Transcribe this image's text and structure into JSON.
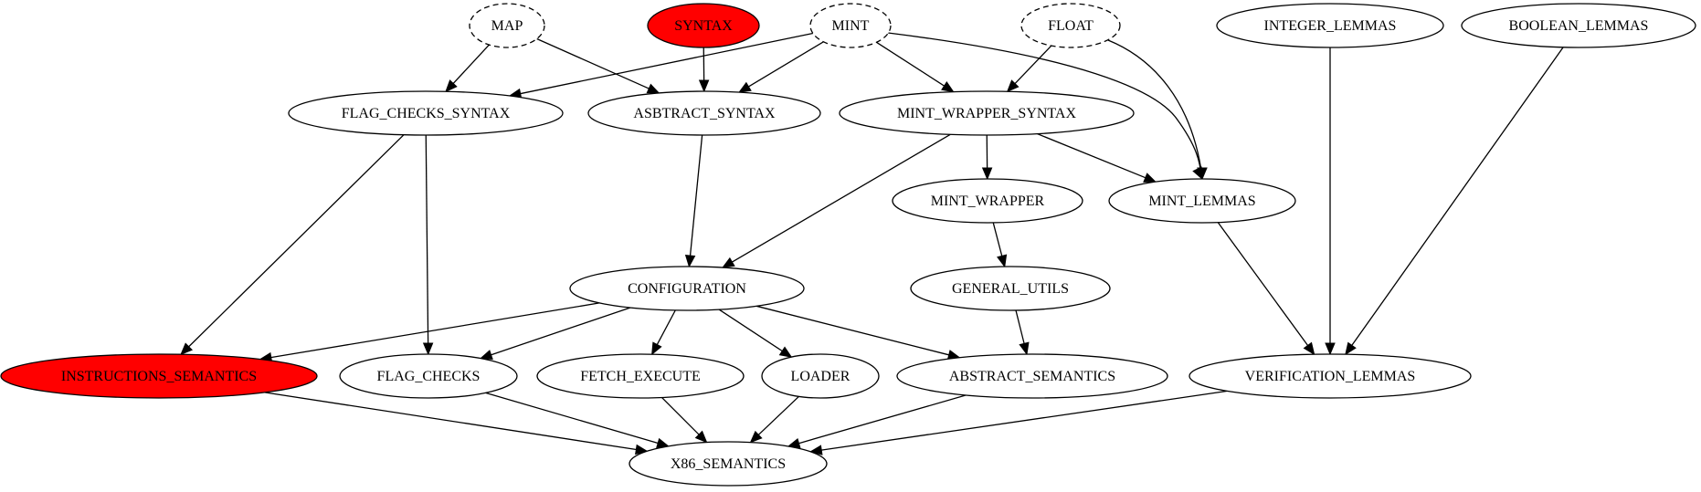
{
  "graph": {
    "nodes": [
      {
        "id": "MAP",
        "label": "MAP",
        "style": "dashed",
        "fill": "#ffffff"
      },
      {
        "id": "SYNTAX",
        "label": "SYNTAX",
        "style": "solid",
        "fill": "#ff0000"
      },
      {
        "id": "MINT",
        "label": "MINT",
        "style": "dashed",
        "fill": "#ffffff"
      },
      {
        "id": "FLOAT",
        "label": "FLOAT",
        "style": "dashed",
        "fill": "#ffffff"
      },
      {
        "id": "INTEGER_LEMMAS",
        "label": "INTEGER_LEMMAS",
        "style": "solid",
        "fill": "#ffffff"
      },
      {
        "id": "BOOLEAN_LEMMAS",
        "label": "BOOLEAN_LEMMAS",
        "style": "solid",
        "fill": "#ffffff"
      },
      {
        "id": "FLAG_CHECKS_SYNTAX",
        "label": "FLAG_CHECKS_SYNTAX",
        "style": "solid",
        "fill": "#ffffff"
      },
      {
        "id": "ASBTRACT_SYNTAX",
        "label": "ASBTRACT_SYNTAX",
        "style": "solid",
        "fill": "#ffffff"
      },
      {
        "id": "MINT_WRAPPER_SYNTAX",
        "label": "MINT_WRAPPER_SYNTAX",
        "style": "solid",
        "fill": "#ffffff"
      },
      {
        "id": "MINT_WRAPPER",
        "label": "MINT_WRAPPER",
        "style": "solid",
        "fill": "#ffffff"
      },
      {
        "id": "MINT_LEMMAS",
        "label": "MINT_LEMMAS",
        "style": "solid",
        "fill": "#ffffff"
      },
      {
        "id": "CONFIGURATION",
        "label": "CONFIGURATION",
        "style": "solid",
        "fill": "#ffffff"
      },
      {
        "id": "GENERAL_UTILS",
        "label": "GENERAL_UTILS",
        "style": "solid",
        "fill": "#ffffff"
      },
      {
        "id": "INSTRUCTIONS_SEMANTICS",
        "label": "INSTRUCTIONS_SEMANTICS",
        "style": "solid",
        "fill": "#ff0000"
      },
      {
        "id": "FLAG_CHECKS",
        "label": "FLAG_CHECKS",
        "style": "solid",
        "fill": "#ffffff"
      },
      {
        "id": "FETCH_EXECUTE",
        "label": "FETCH_EXECUTE",
        "style": "solid",
        "fill": "#ffffff"
      },
      {
        "id": "LOADER",
        "label": "LOADER",
        "style": "solid",
        "fill": "#ffffff"
      },
      {
        "id": "ABSTRACT_SEMANTICS",
        "label": "ABSTRACT_SEMANTICS",
        "style": "solid",
        "fill": "#ffffff"
      },
      {
        "id": "VERIFICATION_LEMMAS",
        "label": "VERIFICATION_LEMMAS",
        "style": "solid",
        "fill": "#ffffff"
      },
      {
        "id": "X86_SEMANTICS",
        "label": "X86_SEMANTICS",
        "style": "solid",
        "fill": "#ffffff"
      }
    ],
    "edges": [
      {
        "from": "MAP",
        "to": "FLAG_CHECKS_SYNTAX"
      },
      {
        "from": "MAP",
        "to": "ASBTRACT_SYNTAX"
      },
      {
        "from": "SYNTAX",
        "to": "ASBTRACT_SYNTAX"
      },
      {
        "from": "MINT",
        "to": "FLAG_CHECKS_SYNTAX"
      },
      {
        "from": "MINT",
        "to": "ASBTRACT_SYNTAX"
      },
      {
        "from": "MINT",
        "to": "MINT_WRAPPER_SYNTAX"
      },
      {
        "from": "MINT",
        "to": "MINT_LEMMAS"
      },
      {
        "from": "FLOAT",
        "to": "MINT_WRAPPER_SYNTAX"
      },
      {
        "from": "FLOAT",
        "to": "MINT_LEMMAS"
      },
      {
        "from": "INTEGER_LEMMAS",
        "to": "VERIFICATION_LEMMAS"
      },
      {
        "from": "BOOLEAN_LEMMAS",
        "to": "VERIFICATION_LEMMAS"
      },
      {
        "from": "FLAG_CHECKS_SYNTAX",
        "to": "INSTRUCTIONS_SEMANTICS"
      },
      {
        "from": "FLAG_CHECKS_SYNTAX",
        "to": "FLAG_CHECKS"
      },
      {
        "from": "ASBTRACT_SYNTAX",
        "to": "CONFIGURATION"
      },
      {
        "from": "MINT_WRAPPER_SYNTAX",
        "to": "CONFIGURATION"
      },
      {
        "from": "MINT_WRAPPER_SYNTAX",
        "to": "MINT_WRAPPER"
      },
      {
        "from": "MINT_WRAPPER_SYNTAX",
        "to": "MINT_LEMMAS"
      },
      {
        "from": "MINT_WRAPPER",
        "to": "GENERAL_UTILS"
      },
      {
        "from": "MINT_LEMMAS",
        "to": "VERIFICATION_LEMMAS"
      },
      {
        "from": "CONFIGURATION",
        "to": "INSTRUCTIONS_SEMANTICS"
      },
      {
        "from": "CONFIGURATION",
        "to": "FLAG_CHECKS"
      },
      {
        "from": "CONFIGURATION",
        "to": "FETCH_EXECUTE"
      },
      {
        "from": "CONFIGURATION",
        "to": "LOADER"
      },
      {
        "from": "CONFIGURATION",
        "to": "ABSTRACT_SEMANTICS"
      },
      {
        "from": "GENERAL_UTILS",
        "to": "ABSTRACT_SEMANTICS"
      },
      {
        "from": "INSTRUCTIONS_SEMANTICS",
        "to": "X86_SEMANTICS"
      },
      {
        "from": "FLAG_CHECKS",
        "to": "X86_SEMANTICS"
      },
      {
        "from": "FETCH_EXECUTE",
        "to": "X86_SEMANTICS"
      },
      {
        "from": "LOADER",
        "to": "X86_SEMANTICS"
      },
      {
        "from": "ABSTRACT_SEMANTICS",
        "to": "X86_SEMANTICS"
      },
      {
        "from": "VERIFICATION_LEMMAS",
        "to": "X86_SEMANTICS"
      }
    ]
  }
}
